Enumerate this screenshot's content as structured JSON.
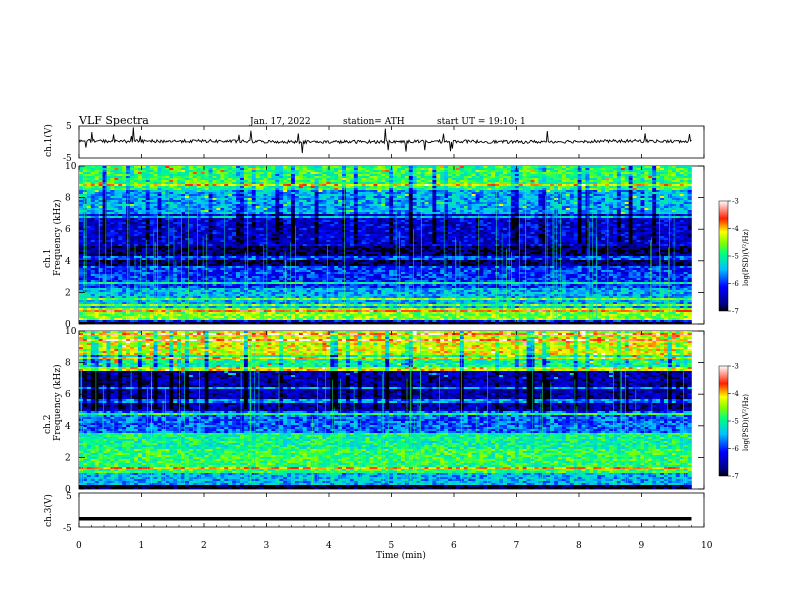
{
  "header": {
    "title": "VLF Spectra",
    "date": "Jan. 17, 2022",
    "station": "station= ATH",
    "start": "start UT = 19:10: 1"
  },
  "chart_data": [
    {
      "type": "line",
      "panel": "ch1-waveform",
      "ylabel": "ch.1(V)",
      "ylim": [
        -5,
        5
      ],
      "yticks": [
        "5",
        "-5"
      ],
      "note": "noisy trace centered near 0 V, amplitude about ±1 V with sporadic spikes",
      "x": [
        0,
        1,
        2,
        3,
        4,
        5,
        6,
        7,
        8,
        9,
        9.8
      ],
      "y": [
        0.3,
        0.2,
        0.3,
        0.1,
        0.0,
        0.1,
        0.2,
        0.0,
        0.2,
        0.3,
        0.1
      ]
    },
    {
      "type": "heatmap",
      "panel": "ch1-spectrogram",
      "ylabel": "ch.1 Frequency (kHz)",
      "ylim": [
        0,
        10
      ],
      "yticks": [
        "0",
        "2",
        "4",
        "6",
        "8",
        "10"
      ],
      "x_range_min": [
        0,
        9.8
      ],
      "colorbar": {
        "label": "log(PSD)(V²/Hz)",
        "ticks": [
          "-3",
          "-4",
          "-5",
          "-6",
          "-7"
        ],
        "range": [
          -7,
          -3
        ]
      },
      "bands": [
        {
          "f_khz": [
            0,
            0.3
          ],
          "log_psd": -7
        },
        {
          "f_khz": [
            0.3,
            1.0
          ],
          "log_psd": -4.5
        },
        {
          "f_khz": [
            1.0,
            2.3
          ],
          "log_psd": -5.5
        },
        {
          "f_khz": [
            2.3,
            3.5
          ],
          "log_psd": -6.0
        },
        {
          "f_khz": [
            3.5,
            5.0
          ],
          "log_psd": -6.8
        },
        {
          "f_khz": [
            5.0,
            7.0
          ],
          "log_psd": -6.3
        },
        {
          "f_khz": [
            7.0,
            8.5
          ],
          "log_psd": -5.5
        },
        {
          "f_khz": [
            8.5,
            10
          ],
          "log_psd": -4.8
        }
      ]
    },
    {
      "type": "heatmap",
      "panel": "ch2-spectrogram",
      "ylabel": "ch.2 Frequency (kHz)",
      "ylim": [
        0,
        10
      ],
      "yticks": [
        "0",
        "2",
        "4",
        "6",
        "8",
        "10"
      ],
      "x_range_min": [
        0,
        9.8
      ],
      "colorbar": {
        "label": "log(PSD)(V²/Hz)",
        "ticks": [
          "-3",
          "-4",
          "-5",
          "-6",
          "-7"
        ],
        "range": [
          -7,
          -3
        ]
      },
      "bands": [
        {
          "f_khz": [
            0,
            0.3
          ],
          "log_psd": -7
        },
        {
          "f_khz": [
            0.3,
            1.0
          ],
          "log_psd": -5.5
        },
        {
          "f_khz": [
            1.0,
            2.5
          ],
          "log_psd": -4.8
        },
        {
          "f_khz": [
            2.5,
            3.5
          ],
          "log_psd": -5.0
        },
        {
          "f_khz": [
            3.5,
            5.0
          ],
          "log_psd": -5.8
        },
        {
          "f_khz": [
            5.0,
            7.5
          ],
          "log_psd": -6.5
        },
        {
          "f_khz": [
            7.5,
            8.5
          ],
          "log_psd": -5.0
        },
        {
          "f_khz": [
            8.5,
            10
          ],
          "log_psd": -4.2
        }
      ]
    },
    {
      "type": "line",
      "panel": "ch3-waveform",
      "ylabel": "ch.3(V)",
      "ylim": [
        -5,
        5
      ],
      "yticks": [
        "5",
        "-5"
      ],
      "x": [
        0,
        9.8
      ],
      "y": [
        -2.6,
        -2.6
      ]
    }
  ],
  "xaxis": {
    "label": "Time (min)",
    "ticks": [
      "0",
      "1",
      "2",
      "3",
      "4",
      "5",
      "6",
      "7",
      "8",
      "9",
      "10"
    ],
    "xlim": [
      0,
      10
    ]
  }
}
